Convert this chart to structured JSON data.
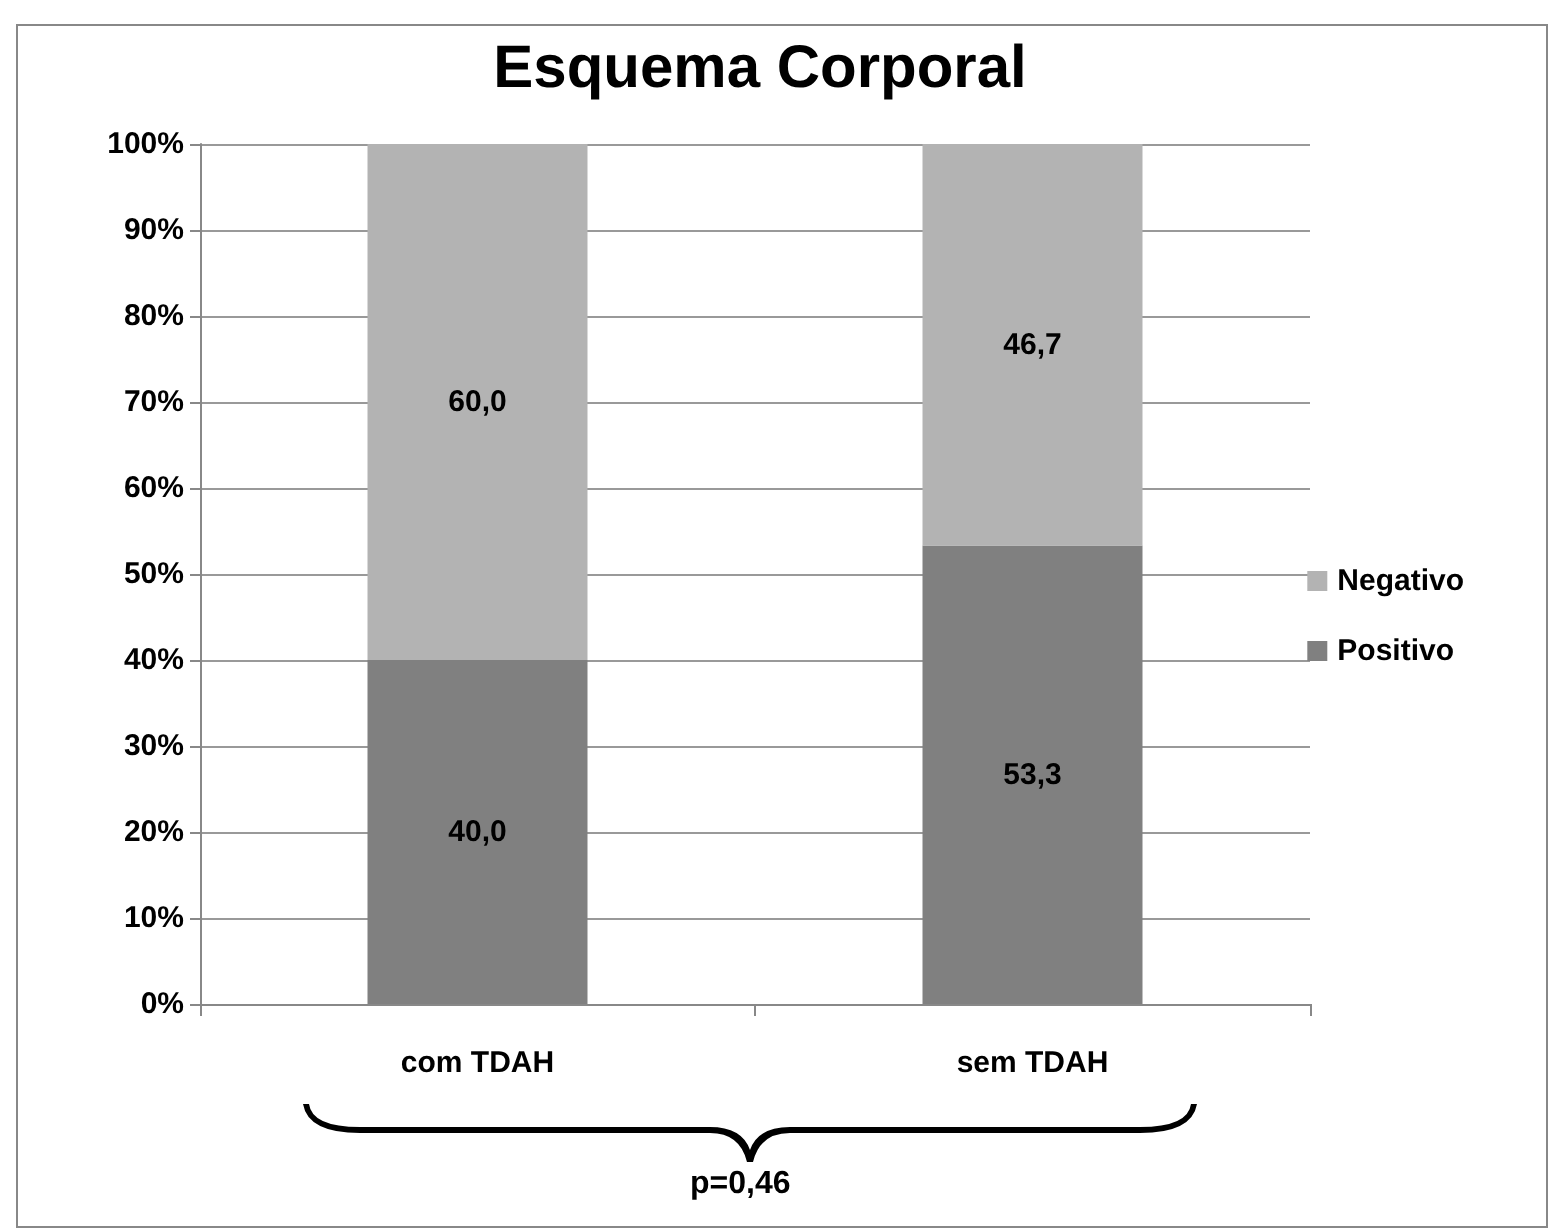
{
  "chart_data": {
    "type": "bar",
    "title": "Esquema Corporal",
    "stacked": true,
    "categories": [
      "com TDAH",
      "sem TDAH"
    ],
    "series": [
      {
        "name": "Positivo",
        "color": "#808080",
        "values": [
          40.0,
          53.3
        ],
        "value_labels": [
          "40,0",
          "53,3"
        ]
      },
      {
        "name": "Negativo",
        "color": "#b3b3b3",
        "values": [
          60.0,
          46.7
        ],
        "value_labels": [
          "60,0",
          "46,7"
        ]
      }
    ],
    "ylim": [
      0,
      100
    ],
    "yticks": [
      {
        "value": 0,
        "label": "0%"
      },
      {
        "value": 10,
        "label": "10%"
      },
      {
        "value": 20,
        "label": "20%"
      },
      {
        "value": 30,
        "label": "30%"
      },
      {
        "value": 40,
        "label": "40%"
      },
      {
        "value": 50,
        "label": "50%"
      },
      {
        "value": 60,
        "label": "60%"
      },
      {
        "value": 70,
        "label": "70%"
      },
      {
        "value": 80,
        "label": "80%"
      },
      {
        "value": 90,
        "label": "90%"
      },
      {
        "value": 100,
        "label": "100%"
      }
    ],
    "grid": "y",
    "legend": "right",
    "annotations": [
      "p=0,46"
    ]
  }
}
